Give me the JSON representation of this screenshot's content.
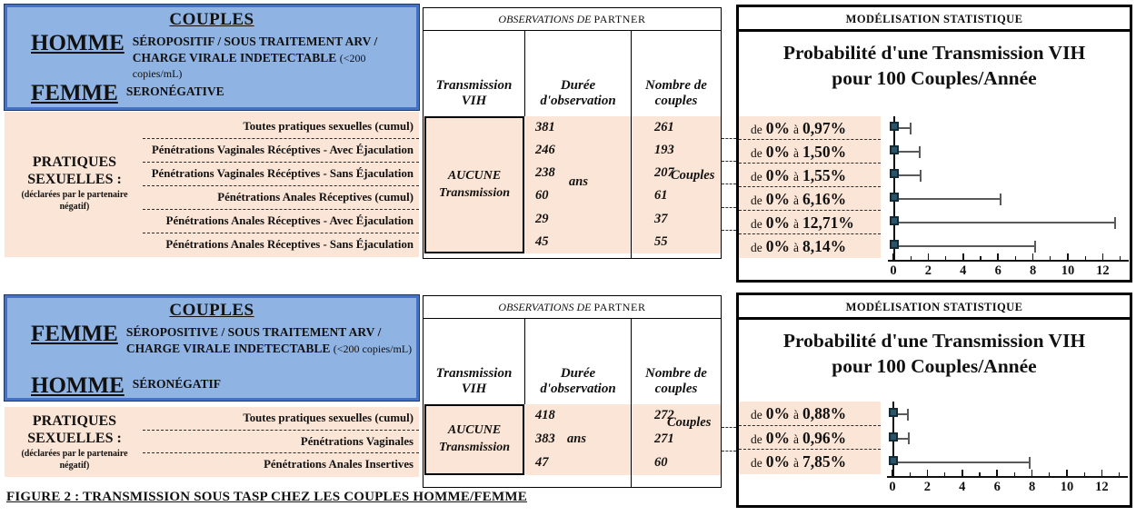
{
  "colors": {
    "blue_fill": "#8fb3e3",
    "blue_border": "#4472c4",
    "salmon": "#fbe5d6",
    "marker_fill": "#2b5468",
    "marker_border": "#122b37"
  },
  "caption": "FIGURE 2 :  TRANSMISSION SOUS TASP CHEZ LES COUPLES HOMME/FEMME",
  "panels": [
    {
      "couples_box": {
        "title": "COUPLES",
        "rows": [
          {
            "name": "HOMME",
            "desc": "SÉROPOSITIF / SOUS TRAITEMENT ARV / CHARGE VIRALE INDETECTABLE",
            "note": "(<200 copies/mL)"
          },
          {
            "name": "FEMME",
            "desc": "SERONÉGATIVE",
            "note": ""
          }
        ]
      },
      "practices": {
        "title": "PRATIQUES SEXUELLES :",
        "note": "(déclarées par le partenaire négatif)",
        "rows": [
          "Toutes pratiques sexuelles (cumul)",
          "Pénétrations Vaginales Récéptives - Avec Éjaculation",
          "Pénétrations Vaginales Récéptives - Sans Éjaculation",
          "Pénétrations Anales Réceptives (cumul)",
          "Pénétrations Anales Réceptives - Avec Éjaculation",
          "Pénétrations Anales Réceptives - Sans Éjaculation"
        ]
      },
      "observations": {
        "header_italic": "OBSERVATIONS DE",
        "header_study": "PARTNER",
        "col1": "Transmission VIH",
        "col2": "Durée d'observation",
        "col3": "Nombre de couples",
        "transmission_line1": "AUCUNE",
        "transmission_line2": "Transmission",
        "durations": [
          "381",
          "246",
          "238",
          "60",
          "29",
          "45"
        ],
        "duration_unit": "ans",
        "couples": [
          "261",
          "193",
          "207",
          "61",
          "37",
          "55"
        ],
        "couples_unit": "Couples"
      },
      "modelisation": {
        "header": "MODÉLISATION STATISTIQUE",
        "title1": "Probabilité d'une Transmission VIH",
        "title2": "pour 100 Couples/Année",
        "rows": [
          {
            "de": "de",
            "zero": "0%",
            "a": "à",
            "val": "0,97%"
          },
          {
            "de": "de",
            "zero": "0%",
            "a": "à",
            "val": "1,50%"
          },
          {
            "de": "de",
            "zero": "0%",
            "a": "à",
            "val": "1,55%"
          },
          {
            "de": "de",
            "zero": "0%",
            "a": "à",
            "val": "6,16%"
          },
          {
            "de": "de",
            "zero": "0%",
            "a": "à",
            "val": "12,71%"
          },
          {
            "de": "de",
            "zero": "0%",
            "a": "à",
            "val": "8,14%"
          }
        ]
      }
    },
    {
      "couples_box": {
        "title": "COUPLES",
        "rows": [
          {
            "name": "FEMME",
            "desc": "SÉROPOSITIVE / SOUS TRAITEMENT ARV / CHARGE VIRALE INDETECTABLE",
            "note": "(<200 copies/mL)"
          },
          {
            "name": "HOMME",
            "desc": "SÉRONÉGATIF",
            "note": ""
          }
        ]
      },
      "practices": {
        "title": "PRATIQUES SEXUELLES :",
        "note": "(déclarées par le partenaire négatif)",
        "rows": [
          "Toutes pratiques sexuelles (cumul)",
          "Pénétrations Vaginales",
          "Pénétrations Anales Insertives"
        ]
      },
      "observations": {
        "header_italic": "OBSERVATIONS DE",
        "header_study": "PARTNER",
        "col1": "Transmission VIH",
        "col2": "Durée d'observation",
        "col3": "Nombre de couples",
        "transmission_line1": "AUCUNE",
        "transmission_line2": "Transmission",
        "durations": [
          "418",
          "383",
          "47"
        ],
        "duration_unit": "ans",
        "couples": [
          "272",
          "271",
          "60"
        ],
        "couples_unit": "Couples"
      },
      "modelisation": {
        "header": "MODÉLISATION STATISTIQUE",
        "title1": "Probabilité d'une Transmission VIH",
        "title2": "pour 100 Couples/Année",
        "rows": [
          {
            "de": "de",
            "zero": "0%",
            "a": "à",
            "val": "0,88%"
          },
          {
            "de": "de",
            "zero": "0%",
            "a": "à",
            "val": "0,96%"
          },
          {
            "de": "de",
            "zero": "0%",
            "a": "à",
            "val": "7,85%"
          }
        ]
      }
    }
  ],
  "chart_data": [
    {
      "type": "errorbar",
      "title": "Probabilité d'une Transmission VIH pour 100 Couples/Année",
      "xlim": [
        0,
        13.3
      ],
      "xticks_major": [
        0,
        2,
        4,
        6,
        8,
        10,
        12
      ],
      "xticks_minor": [
        1,
        3,
        5,
        7,
        9,
        11,
        13
      ],
      "legend_position": "none",
      "rows": [
        {
          "label": "Toutes pratiques sexuelles (cumul)",
          "low": 0,
          "high": 0.97
        },
        {
          "label": "Pénétrations Vaginales Récéptives - Avec Éjaculation",
          "low": 0,
          "high": 1.5
        },
        {
          "label": "Pénétrations Vaginales Récéptives - Sans Éjaculation",
          "low": 0,
          "high": 1.55
        },
        {
          "label": "Pénétrations Anales Réceptives (cumul)",
          "low": 0,
          "high": 6.16
        },
        {
          "label": "Pénétrations Anales Réceptives - Avec Éjaculation",
          "low": 0,
          "high": 12.71
        },
        {
          "label": "Pénétrations Anales Réceptives - Sans Éjaculation",
          "low": 0,
          "high": 8.14
        }
      ]
    },
    {
      "type": "errorbar",
      "title": "Probabilité d'une Transmission VIH pour 100 Couples/Année",
      "xlim": [
        0,
        13.3
      ],
      "xticks_major": [
        0,
        2,
        4,
        6,
        8,
        10,
        12
      ],
      "xticks_minor": [
        1,
        3,
        5,
        7,
        9,
        11,
        13
      ],
      "legend_position": "none",
      "rows": [
        {
          "label": "Toutes pratiques sexuelles (cumul)",
          "low": 0,
          "high": 0.88
        },
        {
          "label": "Pénétrations Vaginales",
          "low": 0,
          "high": 0.96
        },
        {
          "label": "Pénétrations Anales Insertives",
          "low": 0,
          "high": 7.85
        }
      ]
    }
  ]
}
